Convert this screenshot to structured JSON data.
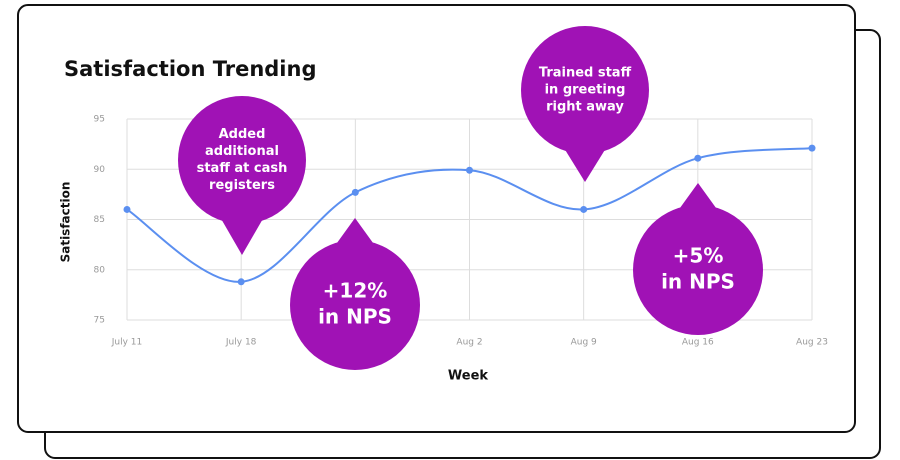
{
  "chart_data": {
    "type": "line",
    "title": "Satisfaction Trending",
    "x_label": "Week",
    "y_label": "Satisfaction",
    "categories": [
      "July 11",
      "July 18",
      null,
      "Aug 2",
      "Aug 9",
      "Aug 16",
      "Aug 23"
    ],
    "series": [
      {
        "name": "Satisfaction",
        "color": "#5b8ff0",
        "values": [
          86,
          78.8,
          87.7,
          89.9,
          86,
          91.1,
          92.1
        ]
      }
    ],
    "ylim": [
      75,
      95
    ],
    "yticks": [
      75,
      80,
      85,
      90,
      95
    ],
    "grid": true,
    "annotations": [
      {
        "lines": [
          "Added",
          "additional",
          "staff at cash",
          "registers"
        ]
      },
      {
        "lines": [
          "+12%",
          "in NPS"
        ]
      },
      {
        "lines": [
          "Trained staff",
          "in greeting",
          "right away"
        ]
      },
      {
        "lines": [
          "+5%",
          "in NPS"
        ]
      }
    ],
    "annotation_color": "#a012b5"
  }
}
